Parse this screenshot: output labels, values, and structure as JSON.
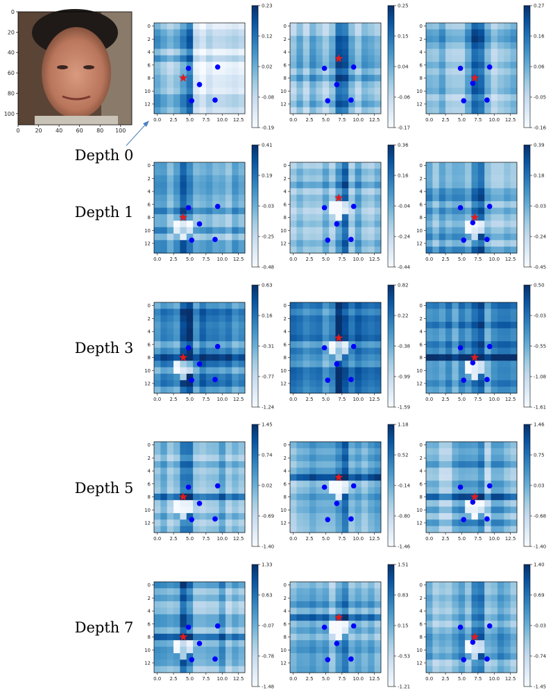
{
  "figure": {
    "input_image": {
      "x_ticks": [
        "0",
        "20",
        "40",
        "60",
        "80",
        "100"
      ],
      "y_ticks": [
        "0",
        "20",
        "40",
        "60",
        "80",
        "100"
      ],
      "x_range": [
        0,
        111
      ],
      "y_range": [
        0,
        111
      ]
    },
    "heatmap_axes": {
      "x_ticks": [
        "0.0",
        "2.5",
        "5.0",
        "7.5",
        "10.0",
        "12.5"
      ],
      "y_ticks": [
        "0",
        "2",
        "4",
        "6",
        "8",
        "10",
        "12"
      ],
      "grid_size": 14
    },
    "colormap": {
      "low": "#f7fbff",
      "mid": "#6baed6",
      "high": "#08306b"
    },
    "landmark_color": "#0000ff",
    "star_color": "#e31a1c"
  },
  "chart_data": [
    {
      "type": "heatmap",
      "row_label": "Depth 0",
      "column": 0,
      "colorbar_ticks": [
        "0.23",
        "0.12",
        "0.02",
        "-0.08",
        "-0.19"
      ],
      "vmin": -0.19,
      "vmax": 0.23,
      "star": [
        4,
        8
      ],
      "landmarks": [
        [
          4.8,
          6.5
        ],
        [
          9.3,
          6.3
        ],
        [
          6.5,
          9
        ],
        [
          5.3,
          11.5
        ],
        [
          8.9,
          11.4
        ]
      ]
    },
    {
      "type": "heatmap",
      "row_label": "Depth 0",
      "column": 1,
      "colorbar_ticks": [
        "0.25",
        "0.15",
        "0.04",
        "-0.06",
        "-0.17"
      ],
      "vmin": -0.17,
      "vmax": 0.25,
      "star": [
        7,
        5
      ],
      "landmarks": [
        [
          4.8,
          6.5
        ],
        [
          9.3,
          6.3
        ],
        [
          6.7,
          9
        ],
        [
          5.3,
          11.5
        ],
        [
          8.9,
          11.4
        ]
      ]
    },
    {
      "type": "heatmap",
      "row_label": "Depth 0",
      "column": 2,
      "colorbar_ticks": [
        "0.27",
        "0.16",
        "0.06",
        "-0.05",
        "-0.16"
      ],
      "vmin": -0.16,
      "vmax": 0.27,
      "star": [
        7,
        8
      ],
      "landmarks": [
        [
          4.8,
          6.5
        ],
        [
          9.3,
          6.3
        ],
        [
          6.7,
          8.8
        ],
        [
          5.3,
          11.5
        ],
        [
          8.9,
          11.4
        ]
      ]
    },
    {
      "type": "heatmap",
      "row_label": "Depth 1",
      "column": 0,
      "colorbar_ticks": [
        "0.41",
        "0.19",
        "-0.03",
        "-0.25",
        "-0.48"
      ],
      "vmin": -0.48,
      "vmax": 0.41,
      "star": [
        4,
        8
      ],
      "landmarks": [
        [
          4.8,
          6.5
        ],
        [
          9.3,
          6.3
        ],
        [
          6.5,
          9
        ],
        [
          5.3,
          11.5
        ],
        [
          8.9,
          11.4
        ]
      ]
    },
    {
      "type": "heatmap",
      "row_label": "Depth 1",
      "column": 1,
      "colorbar_ticks": [
        "0.36",
        "0.16",
        "-0.04",
        "-0.24",
        "-0.44"
      ],
      "vmin": -0.44,
      "vmax": 0.36,
      "star": [
        7,
        5
      ],
      "landmarks": [
        [
          4.8,
          6.5
        ],
        [
          9.3,
          6.3
        ],
        [
          6.7,
          9
        ],
        [
          5.3,
          11.5
        ],
        [
          8.9,
          11.4
        ]
      ]
    },
    {
      "type": "heatmap",
      "row_label": "Depth 1",
      "column": 2,
      "colorbar_ticks": [
        "0.39",
        "0.18",
        "-0.03",
        "-0.24",
        "-0.45"
      ],
      "vmin": -0.45,
      "vmax": 0.39,
      "star": [
        7,
        8
      ],
      "landmarks": [
        [
          4.8,
          6.5
        ],
        [
          9.3,
          6.3
        ],
        [
          6.7,
          8.8
        ],
        [
          5.3,
          11.5
        ],
        [
          8.9,
          11.4
        ]
      ]
    },
    {
      "type": "heatmap",
      "row_label": "Depth 3",
      "column": 0,
      "colorbar_ticks": [
        "0.63",
        "0.16",
        "-0.31",
        "-0.77",
        "-1.24"
      ],
      "vmin": -1.24,
      "vmax": 0.63,
      "star": [
        4,
        8
      ],
      "landmarks": [
        [
          4.8,
          6.5
        ],
        [
          9.3,
          6.3
        ],
        [
          6.5,
          9
        ],
        [
          5.3,
          11.5
        ],
        [
          8.9,
          11.4
        ]
      ]
    },
    {
      "type": "heatmap",
      "row_label": "Depth 3",
      "column": 1,
      "colorbar_ticks": [
        "0.82",
        "0.22",
        "-0.38",
        "-0.99",
        "-1.59"
      ],
      "vmin": -1.59,
      "vmax": 0.82,
      "star": [
        7,
        5
      ],
      "landmarks": [
        [
          4.8,
          6.5
        ],
        [
          9.3,
          6.3
        ],
        [
          6.7,
          9
        ],
        [
          5.3,
          11.5
        ],
        [
          8.9,
          11.4
        ]
      ]
    },
    {
      "type": "heatmap",
      "row_label": "Depth 3",
      "column": 2,
      "colorbar_ticks": [
        "0.50",
        "-0.03",
        "-0.55",
        "-1.08",
        "-1.61"
      ],
      "vmin": -1.61,
      "vmax": 0.5,
      "star": [
        7,
        8
      ],
      "landmarks": [
        [
          4.8,
          6.5
        ],
        [
          9.3,
          6.3
        ],
        [
          6.7,
          8.8
        ],
        [
          5.3,
          11.5
        ],
        [
          8.9,
          11.4
        ]
      ]
    },
    {
      "type": "heatmap",
      "row_label": "Depth 5",
      "column": 0,
      "colorbar_ticks": [
        "1.45",
        "0.74",
        "0.02",
        "-0.69",
        "-1.40"
      ],
      "vmin": -1.4,
      "vmax": 1.45,
      "star": [
        4,
        8
      ],
      "landmarks": [
        [
          4.8,
          6.5
        ],
        [
          9.3,
          6.3
        ],
        [
          6.5,
          9
        ],
        [
          5.3,
          11.5
        ],
        [
          8.9,
          11.4
        ]
      ]
    },
    {
      "type": "heatmap",
      "row_label": "Depth 5",
      "column": 1,
      "colorbar_ticks": [
        "1.18",
        "0.52",
        "-0.14",
        "-0.80",
        "-1.46"
      ],
      "vmin": -1.46,
      "vmax": 1.18,
      "star": [
        7,
        5
      ],
      "landmarks": [
        [
          4.8,
          6.5
        ],
        [
          9.3,
          6.3
        ],
        [
          6.7,
          9
        ],
        [
          5.3,
          11.5
        ],
        [
          8.9,
          11.4
        ]
      ]
    },
    {
      "type": "heatmap",
      "row_label": "Depth 5",
      "column": 2,
      "colorbar_ticks": [
        "1.46",
        "0.75",
        "0.03",
        "-0.68",
        "-1.40"
      ],
      "vmin": -1.4,
      "vmax": 1.46,
      "star": [
        7,
        8
      ],
      "landmarks": [
        [
          4.8,
          6.5
        ],
        [
          9.3,
          6.3
        ],
        [
          6.7,
          8.8
        ],
        [
          5.3,
          11.5
        ],
        [
          8.9,
          11.4
        ]
      ]
    },
    {
      "type": "heatmap",
      "row_label": "Depth 7",
      "column": 0,
      "colorbar_ticks": [
        "1.33",
        "0.63",
        "-0.07",
        "-0.78",
        "-1.48"
      ],
      "vmin": -1.48,
      "vmax": 1.33,
      "star": [
        4,
        8
      ],
      "landmarks": [
        [
          4.8,
          6.5
        ],
        [
          9.3,
          6.3
        ],
        [
          6.5,
          9
        ],
        [
          5.3,
          11.5
        ],
        [
          8.9,
          11.4
        ]
      ]
    },
    {
      "type": "heatmap",
      "row_label": "Depth 7",
      "column": 1,
      "colorbar_ticks": [
        "1.51",
        "0.83",
        "0.15",
        "-0.53",
        "-1.21"
      ],
      "vmin": -1.21,
      "vmax": 1.51,
      "star": [
        7,
        5
      ],
      "landmarks": [
        [
          4.8,
          6.5
        ],
        [
          9.3,
          6.3
        ],
        [
          6.7,
          9
        ],
        [
          5.3,
          11.5
        ],
        [
          8.9,
          11.4
        ]
      ]
    },
    {
      "type": "heatmap",
      "row_label": "Depth 7",
      "column": 2,
      "colorbar_ticks": [
        "1.40",
        "0.69",
        "-0.03",
        "-0.74",
        "-1.45"
      ],
      "vmin": -1.45,
      "vmax": 1.4,
      "star": [
        7,
        8
      ],
      "landmarks": [
        [
          4.8,
          6.5
        ],
        [
          9.3,
          6.3
        ],
        [
          6.7,
          8.8
        ],
        [
          5.3,
          11.5
        ],
        [
          8.9,
          11.4
        ]
      ]
    }
  ],
  "row_labels": [
    "Depth 0",
    "Depth 1",
    "Depth 3",
    "Depth 5",
    "Depth 7"
  ]
}
